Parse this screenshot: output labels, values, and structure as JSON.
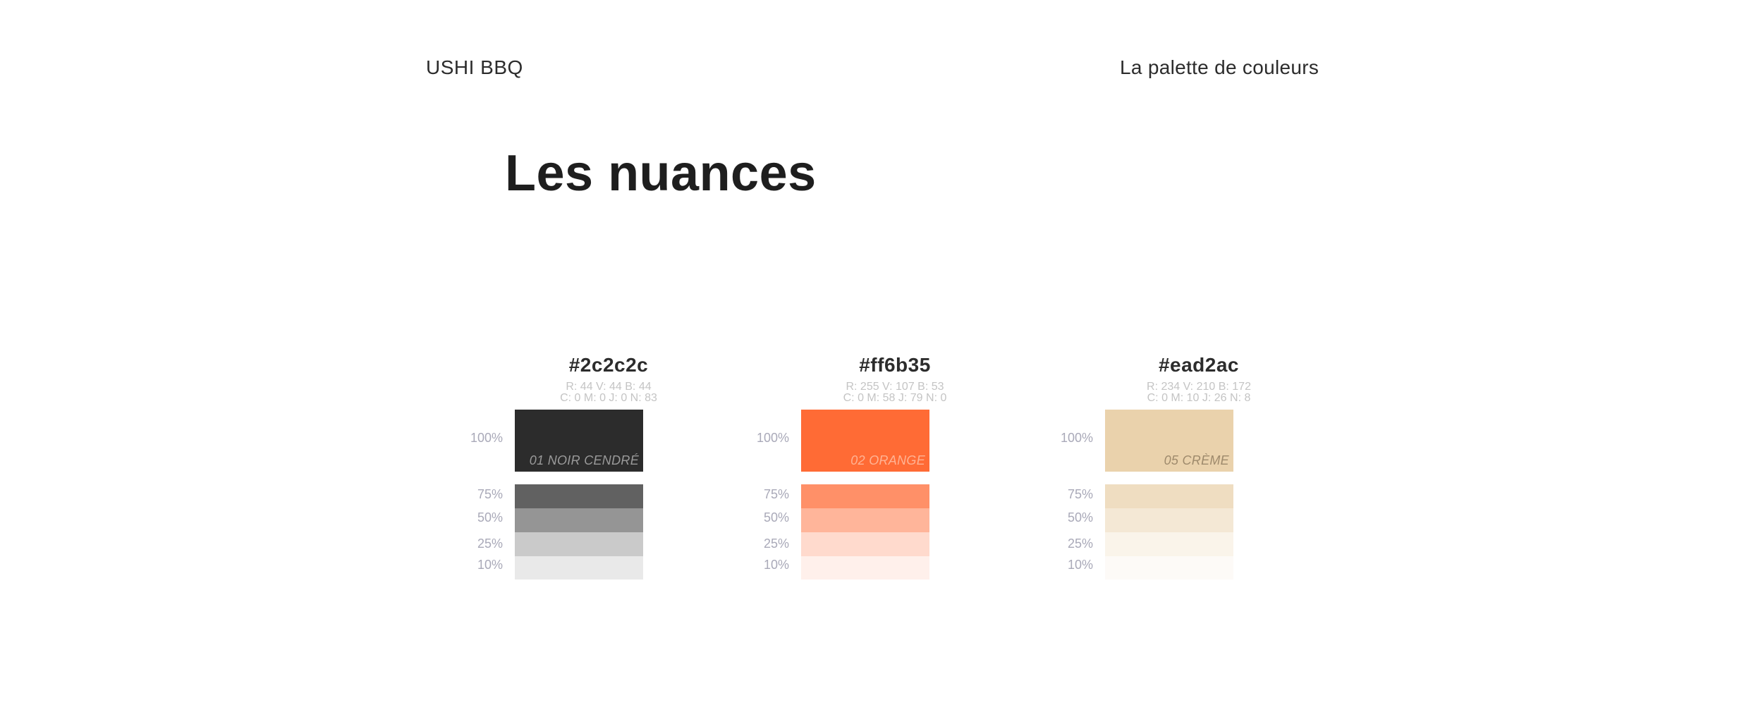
{
  "header": {
    "brand": "USHI BBQ",
    "section": "La palette de couleurs"
  },
  "title": "Les nuances",
  "swatches": [
    {
      "hex": "#2c2c2c",
      "rgb": "R: 44 V: 44 B: 44",
      "cmyk": "C: 0 M: 0 J: 0 N: 83",
      "name": "01 NOIR CENDRÉ",
      "name_color": "#9a9a9a",
      "base_color": "#2c2c2c",
      "tints": [
        "#616161",
        "#959595",
        "#cacaca",
        "#e9e9e9"
      ]
    },
    {
      "hex": "#ff6b35",
      "rgb": "R: 255 V: 107 B: 53",
      "cmyk": "C: 0 M: 58 J: 79 N: 0",
      "name": "02 ORANGE",
      "name_color": "#ffb394",
      "base_color": "#ff6b35",
      "tints": [
        "#ff9068",
        "#ffb59a",
        "#ffdacd",
        "#fff0eb"
      ]
    },
    {
      "hex": "#ead2ac",
      "rgb": "R: 234 V: 210 B: 172",
      "cmyk": "C: 0 M: 10 J: 26 N: 8",
      "name": "05 CRÈME",
      "name_color": "#9e8a6c",
      "base_color": "#ead2ac",
      "tints": [
        "#efddc1",
        "#f4e8d5",
        "#faf4ea",
        "#fdfaf7"
      ]
    }
  ],
  "percent_labels": [
    "100%",
    "75%",
    "50%",
    "25%",
    "10%"
  ]
}
